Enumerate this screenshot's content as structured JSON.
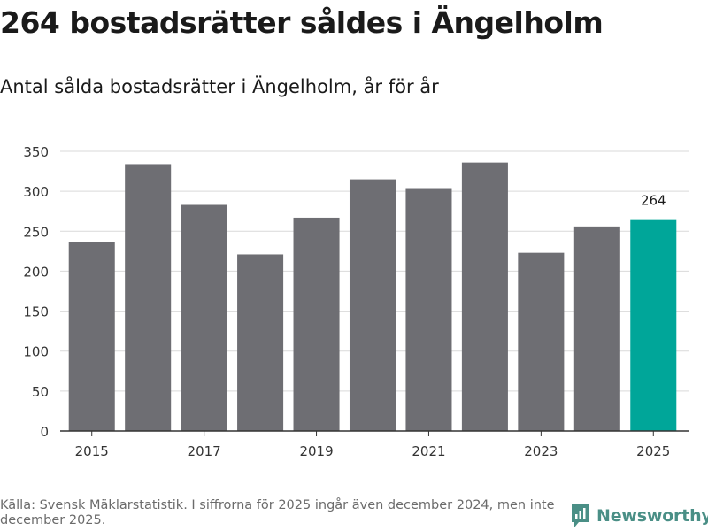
{
  "title": "264 bostadsrätter såldes i Ängelholm",
  "subtitle": "Antal sålda bostadsrätter i Ängelholm, år för år",
  "footer": {
    "source_note": "Källa: Svensk Mäklarstatistik. I siffrorna för 2025 ingår även december 2024, men inte december 2025.",
    "brand": "Newsworthy"
  },
  "colors": {
    "bar": "#6e6e73",
    "highlight": "#00a699",
    "grid": "#d9d9d9",
    "axis": "#333333",
    "brand": "#4a8f86"
  },
  "chart_data": {
    "type": "bar",
    "categories": [
      "2015",
      "2016",
      "2017",
      "2018",
      "2019",
      "2020",
      "2021",
      "2022",
      "2023",
      "2024",
      "2025"
    ],
    "values": [
      237,
      334,
      283,
      221,
      267,
      315,
      304,
      336,
      223,
      256,
      264
    ],
    "x_tick_labels": [
      "2015",
      "2017",
      "2019",
      "2021",
      "2023",
      "2025"
    ],
    "y_ticks": [
      "0",
      "50",
      "100",
      "150",
      "200",
      "250",
      "300",
      "350"
    ],
    "ylim": [
      0,
      350
    ],
    "highlight_category": "2025",
    "data_label": {
      "category": "2025",
      "text": "264"
    },
    "xlabel": "",
    "ylabel": "",
    "grid": true
  }
}
